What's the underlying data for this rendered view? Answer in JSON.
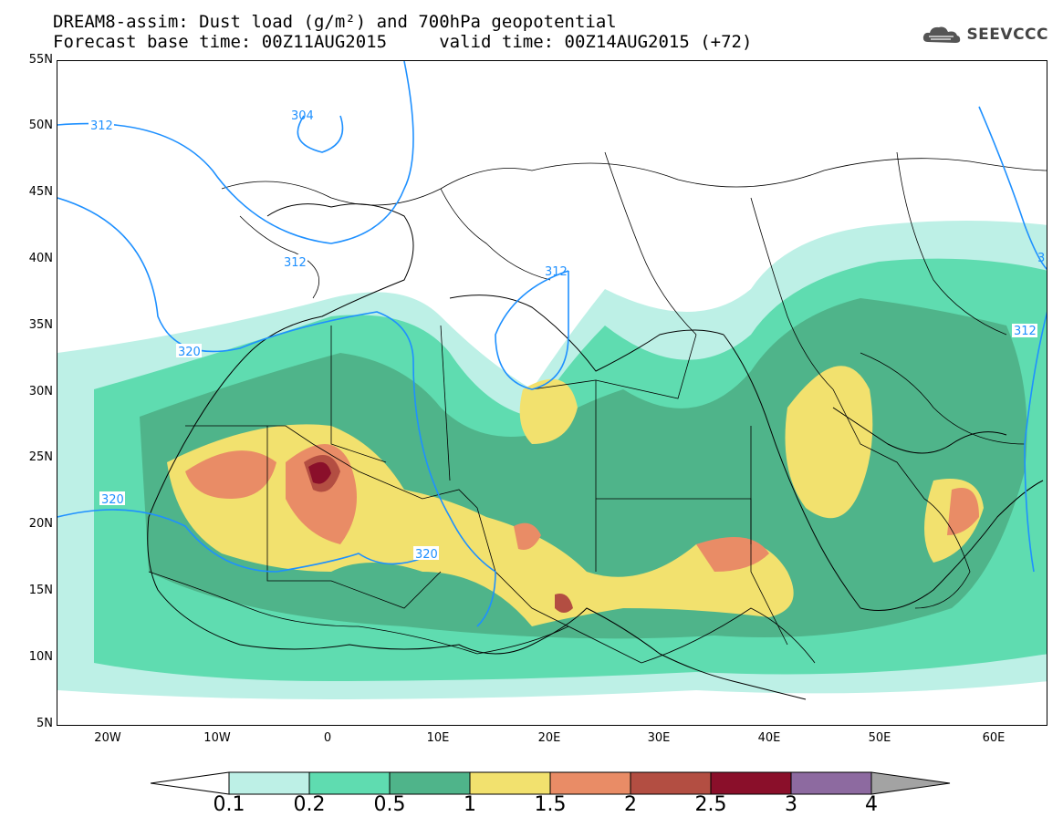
{
  "title_line1": "DREAM8-assim: Dust load (g/m²) and 700hPa geopotential",
  "title_line2": "Forecast base time: 00Z11AUG2015     valid time: 00Z14AUG2015 (+72)",
  "logo_text": "SEEVCCC",
  "lat_labels": [
    "55N",
    "50N",
    "45N",
    "40N",
    "35N",
    "30N",
    "25N",
    "20N",
    "15N",
    "10N",
    "5N"
  ],
  "lon_labels": [
    "20W",
    "10W",
    "0",
    "10E",
    "20E",
    "30E",
    "40E",
    "50E",
    "60E"
  ],
  "contour_labels": [
    "312",
    "304",
    "312",
    "320",
    "320",
    "312",
    "320",
    "312",
    "3"
  ],
  "colorbar": {
    "labels": [
      "0.1",
      "0.2",
      "0.5",
      "1",
      "1.5",
      "2",
      "2.5",
      "3",
      "4"
    ],
    "colors": [
      "#bdf0e6",
      "#5fdcb0",
      "#4fb48a",
      "#f2e16e",
      "#e98c66",
      "#b34e42",
      "#8a0f2a",
      "#8d6aa0",
      "#a3a3a3"
    ]
  },
  "colors": {
    "contour": "#1e90ff",
    "border": "#000000"
  }
}
